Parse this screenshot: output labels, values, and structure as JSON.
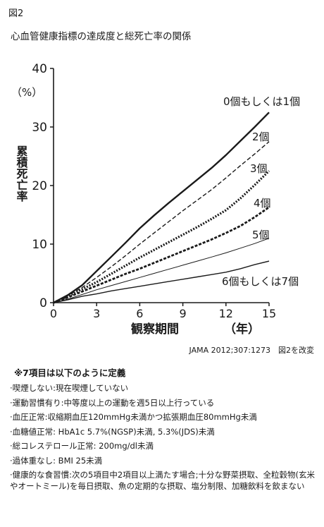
{
  "figure_label": "図2",
  "title": "心血管健康指標の達成度と総死亡率の関係",
  "source": "JAMA 2012;307:1273　図2を改変",
  "notes_title": "※7項目は以下のように定義",
  "notes": [
    "·喫煙しない:現在喫煙していない",
    "·運動習慣有り:中等度以上の運動を週5日以上行っている",
    "·血圧正常:収縮期血圧120mmHg未満かつ拡張期血圧80mmHg未満",
    "·血糖値正常: HbA1c 5.7%(NGSP)未満, 5.3%(JDS)未満",
    "·総コレステロール正常: 200mg/dl未満",
    "·過体重なし: BMI 25未満",
    "·健康的な食習慣:次の5項目中2項目以上満たす場合;十分な野菜摂取、全粒穀物(玄米やオートミール)を毎日摂取、魚の定期的な摂取、塩分制限、加糖飲料を飲まない"
  ],
  "chart_data": {
    "type": "line",
    "xlabel": "観察期間",
    "xunit": "（年）",
    "ylabel": "累積死亡率",
    "yunit": "（%）",
    "xlim": [
      0,
      15
    ],
    "ylim": [
      0,
      40
    ],
    "xticks": [
      0,
      3,
      6,
      9,
      12,
      15
    ],
    "yticks": [
      0,
      10,
      20,
      30,
      40
    ],
    "grid": false,
    "legend": "direct labels at line ends",
    "series": [
      {
        "name": "0個もしくは1個",
        "style": "solid-thick",
        "x": [
          0,
          1,
          2,
          3,
          4,
          5,
          6,
          7,
          8,
          9,
          10,
          11,
          12,
          13,
          14,
          15
        ],
        "y": [
          0,
          1.3,
          3.0,
          5.4,
          7.8,
          10.2,
          12.7,
          14.9,
          17.0,
          19.0,
          21.0,
          23.0,
          25.2,
          27.6,
          30.0,
          32.5
        ]
      },
      {
        "name": "2個",
        "style": "dashed",
        "x": [
          0,
          1,
          2,
          3,
          4,
          5,
          6,
          7,
          8,
          9,
          10,
          11,
          12,
          13,
          14,
          15
        ],
        "y": [
          0,
          1.2,
          2.6,
          4.3,
          6.1,
          8.0,
          10.0,
          11.9,
          13.8,
          15.7,
          17.5,
          19.3,
          21.3,
          23.4,
          25.4,
          27.5
        ]
      },
      {
        "name": "3個",
        "style": "dotted-thick",
        "x": [
          0,
          1,
          2,
          3,
          4,
          5,
          6,
          7,
          8,
          9,
          10,
          11,
          12,
          13,
          14,
          15
        ],
        "y": [
          0,
          1.1,
          2.3,
          3.5,
          4.9,
          6.3,
          7.7,
          9.0,
          10.3,
          11.6,
          12.9,
          14.3,
          15.8,
          17.8,
          20.1,
          22.5
        ]
      },
      {
        "name": "4個",
        "style": "dashed-thick",
        "x": [
          0,
          1,
          2,
          3,
          4,
          5,
          6,
          7,
          8,
          9,
          10,
          11,
          12,
          13,
          14,
          15
        ],
        "y": [
          0,
          0.9,
          1.9,
          2.9,
          3.9,
          4.9,
          5.8,
          6.8,
          7.8,
          8.8,
          9.8,
          10.8,
          11.9,
          13.1,
          14.6,
          16.3
        ]
      },
      {
        "name": "5個",
        "style": "solid-thin",
        "x": [
          0,
          1,
          2,
          3,
          4,
          5,
          6,
          7,
          8,
          9,
          10,
          11,
          12,
          13,
          14,
          15
        ],
        "y": [
          0,
          0.6,
          1.4,
          2.2,
          2.9,
          3.6,
          4.3,
          5.0,
          5.7,
          6.4,
          7.1,
          7.8,
          8.5,
          9.3,
          10.1,
          11.0
        ]
      },
      {
        "name": "6個もしくは7個",
        "style": "solid",
        "x": [
          0,
          1,
          2,
          3,
          4,
          5,
          6,
          7,
          8,
          9,
          10,
          11,
          12,
          13,
          14,
          15
        ],
        "y": [
          0,
          0.5,
          1.1,
          1.5,
          2.0,
          2.4,
          2.8,
          3.2,
          3.6,
          4.0,
          4.4,
          4.8,
          5.2,
          5.8,
          6.5,
          7.1
        ]
      }
    ]
  }
}
